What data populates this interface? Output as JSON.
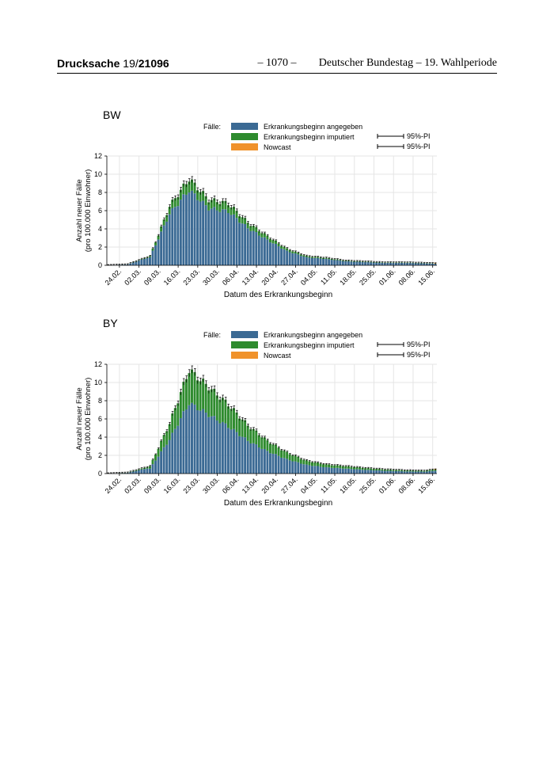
{
  "header": {
    "doc_label": "Drucksache",
    "doc_number_prefix": "19/",
    "doc_number_suffix": "21096",
    "page_number": "– 1070 –",
    "publisher": "Deutscher Bundestag – 19. Wahlperiode"
  },
  "colors": {
    "reported": "#3b6a94",
    "imputed": "#2e8b2e",
    "nowcast": "#f0922b",
    "grid": "#e5e5e5"
  },
  "legend": {
    "title": "Fälle:",
    "items": [
      "Erkrankungsbeginn angegeben",
      "Erkrankungsbeginn imputiert",
      "Nowcast"
    ],
    "pi_labels": [
      "95%-PI",
      "95%-PI"
    ]
  },
  "chart_data": [
    {
      "type": "bar",
      "stacked": true,
      "title": "BW",
      "xlabel": "Datum des Erkrankungsbeginn",
      "ylabel": "Anzahl neuer Fälle\n(pro 100.000 Einwohner)",
      "ylim": [
        0,
        12
      ],
      "yticks": [
        0,
        2,
        4,
        6,
        8,
        10,
        12
      ],
      "x_start": "2020-02-20",
      "days": 118,
      "xtick_labels": [
        "24.02.",
        "02.03.",
        "09.03.",
        "16.03.",
        "23.03.",
        "30.03.",
        "06.04.",
        "13.04.",
        "20.04.",
        "27.04.",
        "04.05.",
        "11.05.",
        "18.05.",
        "25.05.",
        "01.06.",
        "08.06.",
        "15.06."
      ],
      "grid": true,
      "series": [
        {
          "name": "Erkrankungsbeginn angegeben",
          "peak_date": "2020-03-20",
          "peak_value": 8.3,
          "value_2020-04-20": 1.8,
          "value_2020-06-16": 0.1
        },
        {
          "name": "Erkrankungsbeginn imputiert",
          "peak_date": "2020-03-20",
          "peak_value": 1.2
        },
        {
          "name": "Nowcast",
          "value_2020-06-16": 0.0
        }
      ],
      "total_peak": 9.5,
      "total_at_date": {
        "2020-02-27": 0.1,
        "2020-03-06": 1.0,
        "2020-03-13": 6.5,
        "2020-03-20": 9.5,
        "2020-03-27": 7.2,
        "2020-04-03": 6.8,
        "2020-04-10": 4.7,
        "2020-04-17": 3.2,
        "2020-04-24": 1.8,
        "2020-05-01": 1.0,
        "2020-05-08": 0.8,
        "2020-05-15": 0.5,
        "2020-05-22": 0.4,
        "2020-05-29": 0.3,
        "2020-06-05": 0.3,
        "2020-06-12": 0.25,
        "2020-06-16": 0.2
      },
      "imputed_share": 0.13
    },
    {
      "type": "bar",
      "stacked": true,
      "title": "BY",
      "xlabel": "Datum des Erkrankungsbeginn",
      "ylabel": "Anzahl neuer Fälle\n(pro 100.000 Einwohner)",
      "ylim": [
        0,
        12
      ],
      "yticks": [
        0,
        2,
        4,
        6,
        8,
        10,
        12
      ],
      "x_start": "2020-02-20",
      "days": 118,
      "xtick_labels": [
        "24.02.",
        "02.03.",
        "09.03.",
        "16.03.",
        "23.03.",
        "30.03.",
        "06.04.",
        "13.04.",
        "20.04.",
        "27.04.",
        "04.05.",
        "11.05.",
        "18.05.",
        "25.05.",
        "01.06.",
        "08.06.",
        "15.06."
      ],
      "grid": true,
      "series": [
        {
          "name": "Erkrankungsbeginn angegeben",
          "peak_date": "2020-03-20",
          "peak_value": 7.8
        },
        {
          "name": "Erkrankungsbeginn imputiert",
          "peak_date": "2020-03-20",
          "peak_value": 3.6
        },
        {
          "name": "Nowcast",
          "value_2020-06-16": 0.05
        }
      ],
      "total_peak": 11.4,
      "total_at_date": {
        "2020-02-27": 0.1,
        "2020-03-06": 0.8,
        "2020-03-13": 5.5,
        "2020-03-20": 11.4,
        "2020-03-27": 9.5,
        "2020-04-03": 7.6,
        "2020-04-10": 5.3,
        "2020-04-17": 3.6,
        "2020-04-24": 2.3,
        "2020-05-01": 1.4,
        "2020-05-08": 1.0,
        "2020-05-15": 0.8,
        "2020-05-22": 0.6,
        "2020-05-29": 0.45,
        "2020-06-05": 0.35,
        "2020-06-12": 0.3,
        "2020-06-16": 0.45
      },
      "imputed_share": 0.32
    }
  ]
}
